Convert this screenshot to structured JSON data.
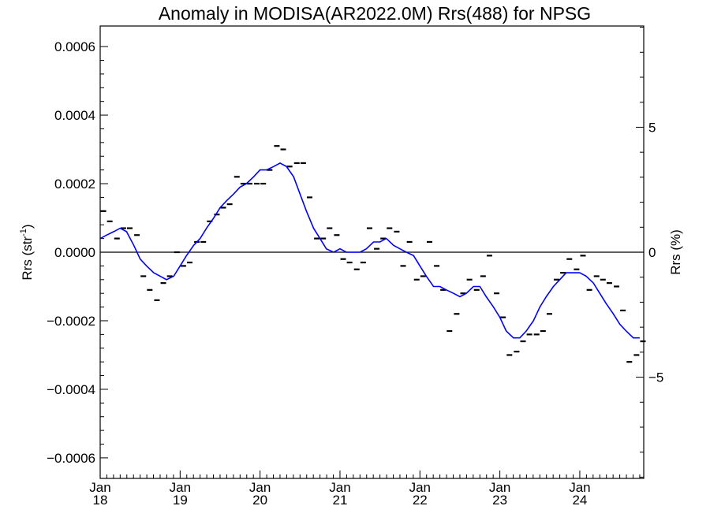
{
  "chart_data": {
    "type": "line",
    "title": "Anomaly in MODISA(AR2022.0M) Rrs(488) for NPSG",
    "ylabel_left": "Rrs (str",
    "ylabel_left_sup": "-1",
    "ylabel_left_close": ")",
    "ylabel_right": "Rrs (%)",
    "ylim": [
      -0.00066,
      0.00066
    ],
    "ylim_right": [
      -9.05,
      9.05
    ],
    "xlim": [
      2018.0,
      2024.8
    ],
    "yticks": [
      {
        "value": -0.0006,
        "label": "−0.0006"
      },
      {
        "value": -0.0004,
        "label": "−0.0004"
      },
      {
        "value": -0.0002,
        "label": "−0.0002"
      },
      {
        "value": 0.0,
        "label": "0.0000"
      },
      {
        "value": 0.0002,
        "label": "0.0002"
      },
      {
        "value": 0.0004,
        "label": "0.0004"
      },
      {
        "value": 0.0006,
        "label": "0.0006"
      }
    ],
    "yticks_right": [
      {
        "value": -5,
        "label": "−5"
      },
      {
        "value": 0,
        "label": "0"
      },
      {
        "value": 5,
        "label": "5"
      }
    ],
    "xticks": [
      {
        "value": 2018,
        "month": "Jan",
        "year": "18"
      },
      {
        "value": 2019,
        "month": "Jan",
        "year": "19"
      },
      {
        "value": 2020,
        "month": "Jan",
        "year": "20"
      },
      {
        "value": 2021,
        "month": "Jan",
        "year": "21"
      },
      {
        "value": 2022,
        "month": "Jan",
        "year": "22"
      },
      {
        "value": 2023,
        "month": "Jan",
        "year": "23"
      },
      {
        "value": 2024,
        "month": "Jan",
        "year": "24"
      }
    ],
    "zero_line": 0,
    "series": [
      {
        "kind": "monthly",
        "color": "#000000",
        "points": [
          [
            2018.04,
            0.00012
          ],
          [
            2018.12,
            9e-05
          ],
          [
            2018.21,
            4e-05
          ],
          [
            2018.29,
            7e-05
          ],
          [
            2018.37,
            7e-05
          ],
          [
            2018.46,
            5e-05
          ],
          [
            2018.54,
            -7e-05
          ],
          [
            2018.62,
            -0.00011
          ],
          [
            2018.71,
            -0.00014
          ],
          [
            2018.79,
            -9e-05
          ],
          [
            2018.87,
            -7e-05
          ],
          [
            2018.96,
            0.0
          ],
          [
            2019.04,
            -4e-05
          ],
          [
            2019.12,
            -3e-05
          ],
          [
            2019.21,
            3e-05
          ],
          [
            2019.29,
            3e-05
          ],
          [
            2019.37,
            9e-05
          ],
          [
            2019.46,
            0.00011
          ],
          [
            2019.54,
            0.00013
          ],
          [
            2019.62,
            0.00014
          ],
          [
            2019.71,
            0.00022
          ],
          [
            2019.79,
            0.0002
          ],
          [
            2019.87,
            0.0002
          ],
          [
            2019.96,
            0.0002
          ],
          [
            2020.04,
            0.0002
          ],
          [
            2020.12,
            0.00024
          ],
          [
            2020.21,
            0.00031
          ],
          [
            2020.29,
            0.0003
          ],
          [
            2020.37,
            0.00025
          ],
          [
            2020.46,
            0.00026
          ],
          [
            2020.54,
            0.00026
          ],
          [
            2020.62,
            0.00016
          ],
          [
            2020.71,
            4e-05
          ],
          [
            2020.79,
            4e-05
          ],
          [
            2020.87,
            7e-05
          ],
          [
            2020.96,
            5e-05
          ],
          [
            2021.04,
            -2e-05
          ],
          [
            2021.12,
            -3e-05
          ],
          [
            2021.21,
            -5e-05
          ],
          [
            2021.29,
            -3e-05
          ],
          [
            2021.37,
            7e-05
          ],
          [
            2021.46,
            1e-05
          ],
          [
            2021.54,
            4e-05
          ],
          [
            2021.62,
            7e-05
          ],
          [
            2021.71,
            6e-05
          ],
          [
            2021.79,
            -4e-05
          ],
          [
            2021.87,
            3e-05
          ],
          [
            2021.96,
            -8e-05
          ],
          [
            2022.04,
            -7e-05
          ],
          [
            2022.12,
            3e-05
          ],
          [
            2022.21,
            -4e-05
          ],
          [
            2022.29,
            -0.00011
          ],
          [
            2022.37,
            -0.00023
          ],
          [
            2022.46,
            -0.00018
          ],
          [
            2022.54,
            -0.00012
          ],
          [
            2022.62,
            -8e-05
          ],
          [
            2022.71,
            -0.00011
          ],
          [
            2022.79,
            -7e-05
          ],
          [
            2022.87,
            -1e-05
          ],
          [
            2022.96,
            -0.00012
          ],
          [
            2023.04,
            -0.00019
          ],
          [
            2023.12,
            -0.0003
          ],
          [
            2023.21,
            -0.00029
          ],
          [
            2023.29,
            -0.00026
          ],
          [
            2023.37,
            -0.00024
          ],
          [
            2023.46,
            -0.00024
          ],
          [
            2023.54,
            -0.00023
          ],
          [
            2023.62,
            -0.00018
          ],
          [
            2023.71,
            -8e-05
          ],
          [
            2023.79,
            -6e-05
          ],
          [
            2023.87,
            -2e-05
          ],
          [
            2023.96,
            -5e-05
          ],
          [
            2024.04,
            -1e-05
          ],
          [
            2024.12,
            -0.00011
          ],
          [
            2024.21,
            -7e-05
          ],
          [
            2024.29,
            -8e-05
          ],
          [
            2024.37,
            -9e-05
          ],
          [
            2024.46,
            -0.0001
          ],
          [
            2024.54,
            -0.00017
          ],
          [
            2024.62,
            -0.00032
          ],
          [
            2024.71,
            -0.0003
          ],
          [
            2024.79,
            -0.00026
          ]
        ]
      },
      {
        "kind": "running-mean",
        "color": "#0000ff",
        "points": [
          [
            2018.0,
            4e-05
          ],
          [
            2018.08,
            5e-05
          ],
          [
            2018.17,
            6e-05
          ],
          [
            2018.25,
            7e-05
          ],
          [
            2018.33,
            6e-05
          ],
          [
            2018.42,
            2e-05
          ],
          [
            2018.5,
            -2e-05
          ],
          [
            2018.58,
            -4e-05
          ],
          [
            2018.67,
            -6e-05
          ],
          [
            2018.75,
            -7e-05
          ],
          [
            2018.83,
            -8e-05
          ],
          [
            2018.92,
            -7e-05
          ],
          [
            2019.0,
            -4e-05
          ],
          [
            2019.08,
            -1e-05
          ],
          [
            2019.17,
            2e-05
          ],
          [
            2019.25,
            4e-05
          ],
          [
            2019.33,
            7e-05
          ],
          [
            2019.42,
            0.0001
          ],
          [
            2019.5,
            0.00013
          ],
          [
            2019.58,
            0.00015
          ],
          [
            2019.67,
            0.00017
          ],
          [
            2019.75,
            0.00019
          ],
          [
            2019.83,
            0.0002
          ],
          [
            2019.92,
            0.00022
          ],
          [
            2020.0,
            0.00024
          ],
          [
            2020.08,
            0.00024
          ],
          [
            2020.17,
            0.00025
          ],
          [
            2020.25,
            0.00026
          ],
          [
            2020.33,
            0.00025
          ],
          [
            2020.42,
            0.00022
          ],
          [
            2020.5,
            0.00017
          ],
          [
            2020.58,
            0.00012
          ],
          [
            2020.67,
            7e-05
          ],
          [
            2020.75,
            4e-05
          ],
          [
            2020.83,
            1e-05
          ],
          [
            2020.92,
            0.0
          ],
          [
            2021.0,
            1e-05
          ],
          [
            2021.08,
            0.0
          ],
          [
            2021.17,
            0.0
          ],
          [
            2021.25,
            0.0
          ],
          [
            2021.33,
            1e-05
          ],
          [
            2021.42,
            3e-05
          ],
          [
            2021.5,
            3e-05
          ],
          [
            2021.58,
            4e-05
          ],
          [
            2021.67,
            2e-05
          ],
          [
            2021.75,
            1e-05
          ],
          [
            2021.83,
            0.0
          ],
          [
            2021.92,
            -1e-05
          ],
          [
            2022.0,
            -4e-05
          ],
          [
            2022.08,
            -7e-05
          ],
          [
            2022.17,
            -0.0001
          ],
          [
            2022.25,
            -0.0001
          ],
          [
            2022.33,
            -0.00011
          ],
          [
            2022.42,
            -0.00012
          ],
          [
            2022.5,
            -0.00013
          ],
          [
            2022.58,
            -0.00012
          ],
          [
            2022.67,
            -0.0001
          ],
          [
            2022.75,
            -0.0001
          ],
          [
            2022.83,
            -0.00013
          ],
          [
            2022.92,
            -0.00016
          ],
          [
            2023.0,
            -0.00019
          ],
          [
            2023.08,
            -0.00023
          ],
          [
            2023.17,
            -0.00025
          ],
          [
            2023.25,
            -0.00025
          ],
          [
            2023.33,
            -0.00023
          ],
          [
            2023.42,
            -0.0002
          ],
          [
            2023.5,
            -0.00016
          ],
          [
            2023.58,
            -0.00013
          ],
          [
            2023.67,
            -0.0001
          ],
          [
            2023.75,
            -8e-05
          ],
          [
            2023.83,
            -6e-05
          ],
          [
            2023.92,
            -6e-05
          ],
          [
            2024.0,
            -6e-05
          ],
          [
            2024.08,
            -7e-05
          ],
          [
            2024.17,
            -9e-05
          ],
          [
            2024.25,
            -0.00012
          ],
          [
            2024.33,
            -0.00015
          ],
          [
            2024.42,
            -0.00018
          ],
          [
            2024.5,
            -0.00021
          ],
          [
            2024.58,
            -0.00023
          ],
          [
            2024.67,
            -0.00025
          ],
          [
            2024.75,
            -0.00025
          ]
        ]
      }
    ]
  }
}
